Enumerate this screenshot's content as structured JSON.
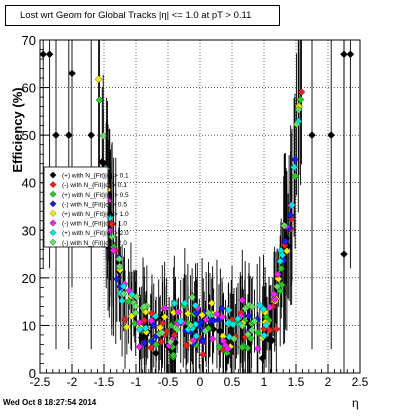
{
  "chart_data": {
    "type": "scatter",
    "title": "Lost wrt Geom for Global Tracks |η| <= 1.0 at pT > 0.11",
    "xlabel": "η",
    "ylabel": "Efficiency (%)",
    "xlim": [
      -2.5,
      2.5
    ],
    "ylim": [
      0,
      70
    ],
    "x_ticks": [
      "-2.5",
      "-2",
      "-1.5",
      "-1",
      "-0.5",
      "0",
      "0.5",
      "1",
      "1.5",
      "2",
      "2.5"
    ],
    "y_ticks": [
      "0",
      "10",
      "20",
      "30",
      "40",
      "50",
      "60",
      "70"
    ],
    "grid": true,
    "legend_position": "middle-left",
    "series": [
      {
        "name": "(+) with N_{Fit}|q| > 0.1",
        "color": "#000000"
      },
      {
        "name": "(-) with N_{Fit}|q| > 0.1",
        "color": "#e8231f"
      },
      {
        "name": "(+) with N_{Fit}|q| > 0.5",
        "color": "#22cc22"
      },
      {
        "name": "(-) with N_{Fit}|q| > 0.5",
        "color": "#1a1aee"
      },
      {
        "name": "(+) with N_{Fit}|q| > 1.0",
        "color": "#eeee00"
      },
      {
        "name": "(-) with N_{Fit}|q| > 1.0",
        "color": "#ee22ee"
      },
      {
        "name": "(+) with N_{Fit}|q| > 2.0",
        "color": "#00e8e8"
      },
      {
        "name": "(-) with N_{Fit}|q| > 2.0",
        "color": "#66dd66"
      }
    ],
    "outer_points": [
      {
        "x": -2.45,
        "y": 67
      },
      {
        "x": -2.35,
        "y": 67
      },
      {
        "x": -2.25,
        "y": 50
      },
      {
        "x": -2.05,
        "y": 50
      },
      {
        "x": -2.0,
        "y": 63
      },
      {
        "x": -1.7,
        "y": 50
      },
      {
        "x": 1.75,
        "y": 50
      },
      {
        "x": 2.05,
        "y": 50
      },
      {
        "x": 2.25,
        "y": 67
      },
      {
        "x": 2.35,
        "y": 67
      },
      {
        "x": 2.25,
        "y": 25
      }
    ]
  },
  "footer": {
    "timestamp": "Wed Oct  8 18:27:54 2014"
  }
}
